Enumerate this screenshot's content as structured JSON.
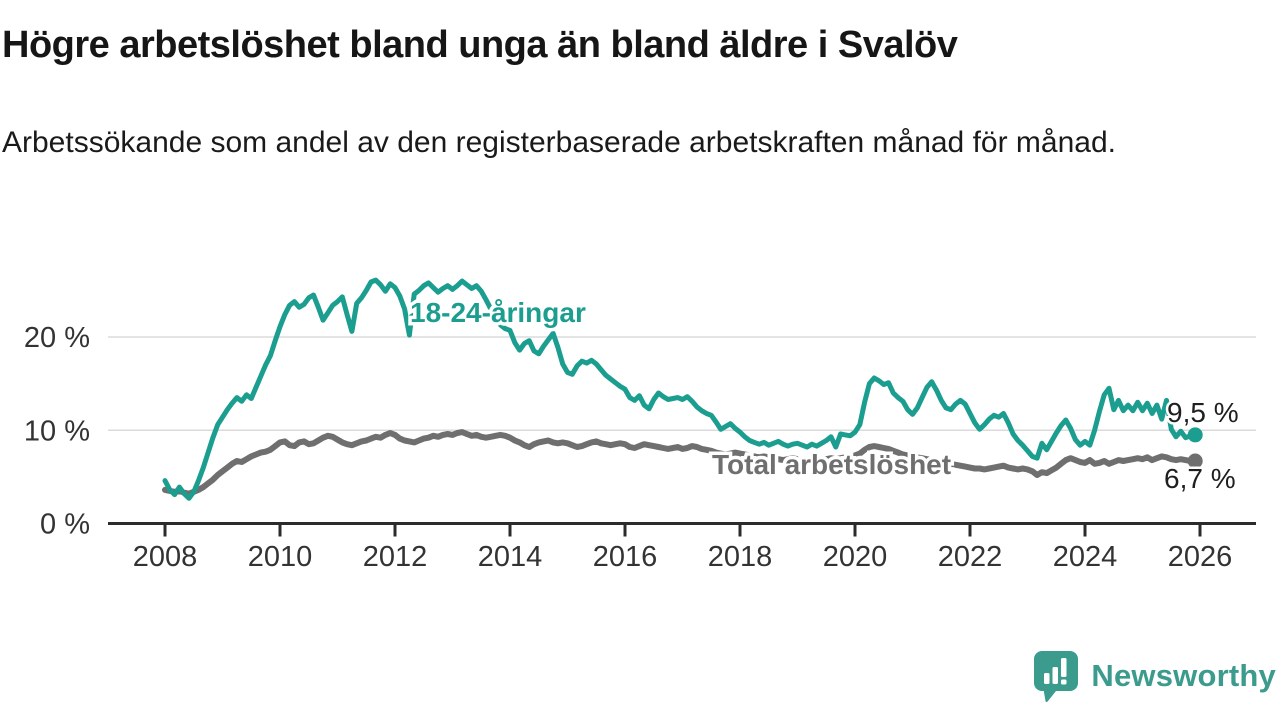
{
  "page": {
    "title": "Högre arbetslöshet bland unga än bland äldre i Svalöv",
    "subtitle": "Arbetssökande som andel av den registerbaserade arbetskraften månad för månad."
  },
  "chart_data": {
    "type": "line",
    "title": "Högre arbetslöshet bland unga än bland äldre i Svalöv",
    "subtitle": "Arbetssökande som andel av den registerbaserade arbetskraften månad för månad.",
    "x_unit": "month",
    "x_start_year": 2008,
    "points_per_year": 12,
    "xlim": [
      2008,
      2026
    ],
    "ylim": [
      0,
      27
    ],
    "grid": "horizontal",
    "x_ticks": [
      "2008",
      "2010",
      "2012",
      "2014",
      "2016",
      "2018",
      "2020",
      "2022",
      "2024",
      "2026"
    ],
    "y_ticks": [
      {
        "value": 0,
        "label": "0 %"
      },
      {
        "value": 10,
        "label": "10 %"
      },
      {
        "value": 20,
        "label": "20 %"
      }
    ],
    "series": [
      {
        "name": "18-24-åringar",
        "color": "#1b9e8f",
        "end_label": "9,5 %",
        "last_value": 9.5,
        "values": [
          4.6,
          3.6,
          3.1,
          3.9,
          3.2,
          2.7,
          3.4,
          4.6,
          6.0,
          7.6,
          9.2,
          10.6,
          11.4,
          12.2,
          12.9,
          13.5,
          13.1,
          13.8,
          13.4,
          14.6,
          15.8,
          17.0,
          18.0,
          19.6,
          21.1,
          22.4,
          23.4,
          23.8,
          23.2,
          23.5,
          24.2,
          24.5,
          23.2,
          21.8,
          22.6,
          23.4,
          23.8,
          24.3,
          22.4,
          20.6,
          23.6,
          24.2,
          25.0,
          25.9,
          26.1,
          25.6,
          24.9,
          25.7,
          25.3,
          24.4,
          23.0,
          20.2,
          24.6,
          25.0,
          25.5,
          25.8,
          25.3,
          24.8,
          25.2,
          25.5,
          25.1,
          25.5,
          26.0,
          25.6,
          25.2,
          25.5,
          24.9,
          24.0,
          23.0,
          22.0,
          21.3,
          20.9,
          20.7,
          19.4,
          18.6,
          19.3,
          19.6,
          18.5,
          18.2,
          19.0,
          19.7,
          20.4,
          18.9,
          17.1,
          16.2,
          16.0,
          16.9,
          17.4,
          17.2,
          17.5,
          17.1,
          16.5,
          15.9,
          15.5,
          15.1,
          14.7,
          14.4,
          13.5,
          13.2,
          13.7,
          12.7,
          12.3,
          13.3,
          14.0,
          13.6,
          13.3,
          13.4,
          13.5,
          13.3,
          13.6,
          13.1,
          12.5,
          12.1,
          11.8,
          11.6,
          10.9,
          10.1,
          10.4,
          10.7,
          10.2,
          9.8,
          9.3,
          8.9,
          8.7,
          8.5,
          8.7,
          8.4,
          8.6,
          8.8,
          8.5,
          8.3,
          8.5,
          8.6,
          8.4,
          8.2,
          8.5,
          8.3,
          8.6,
          8.9,
          9.3,
          8.2,
          9.6,
          9.5,
          9.4,
          9.8,
          10.6,
          13.0,
          15.0,
          15.6,
          15.3,
          14.9,
          15.1,
          14.0,
          13.5,
          13.1,
          12.2,
          11.7,
          12.4,
          13.5,
          14.6,
          15.2,
          14.3,
          13.2,
          12.4,
          12.2,
          12.8,
          13.2,
          12.8,
          11.8,
          10.8,
          10.1,
          10.6,
          11.2,
          11.6,
          11.4,
          11.8,
          10.8,
          9.6,
          8.9,
          8.4,
          7.8,
          7.2,
          7.0,
          8.6,
          7.9,
          8.8,
          9.7,
          10.5,
          11.1,
          10.2,
          9.0,
          8.4,
          8.8,
          8.4,
          10.0,
          12.0,
          13.8,
          14.5,
          12.2,
          13.2,
          12.1,
          12.7,
          12.1,
          13.0,
          12.1,
          12.9,
          11.8,
          12.7,
          11.2,
          13.2,
          10.1,
          9.3,
          9.9,
          9.2,
          9.4,
          9.5
        ]
      },
      {
        "name": "Total arbetslöshet",
        "color": "#6f6f6f",
        "end_label": "6,7 %",
        "last_value": 6.7,
        "values": [
          3.6,
          3.5,
          3.4,
          3.5,
          3.3,
          3.2,
          3.4,
          3.6,
          3.9,
          4.3,
          4.7,
          5.2,
          5.6,
          6.0,
          6.4,
          6.7,
          6.6,
          6.9,
          7.2,
          7.4,
          7.6,
          7.7,
          7.9,
          8.3,
          8.7,
          8.8,
          8.4,
          8.3,
          8.7,
          8.8,
          8.5,
          8.6,
          8.9,
          9.2,
          9.4,
          9.3,
          9.0,
          8.7,
          8.5,
          8.4,
          8.6,
          8.8,
          8.9,
          9.1,
          9.3,
          9.2,
          9.5,
          9.7,
          9.5,
          9.1,
          8.9,
          8.8,
          8.7,
          8.9,
          9.1,
          9.2,
          9.4,
          9.3,
          9.5,
          9.6,
          9.5,
          9.7,
          9.8,
          9.6,
          9.4,
          9.5,
          9.3,
          9.2,
          9.3,
          9.4,
          9.5,
          9.4,
          9.2,
          8.9,
          8.7,
          8.4,
          8.2,
          8.5,
          8.7,
          8.8,
          8.9,
          8.7,
          8.6,
          8.7,
          8.6,
          8.4,
          8.2,
          8.3,
          8.5,
          8.7,
          8.8,
          8.6,
          8.5,
          8.4,
          8.5,
          8.6,
          8.5,
          8.2,
          8.1,
          8.3,
          8.5,
          8.4,
          8.3,
          8.2,
          8.1,
          8.0,
          8.1,
          8.2,
          8.0,
          8.1,
          8.3,
          8.2,
          8.0,
          7.9,
          7.8,
          7.6,
          7.5,
          7.4,
          7.5,
          7.6,
          7.5,
          7.4,
          7.3,
          7.2,
          7.1,
          7.2,
          7.1,
          7.0,
          6.9,
          6.8,
          6.9,
          7.0,
          6.9,
          6.8,
          6.7,
          6.8,
          6.7,
          6.8,
          6.9,
          7.0,
          6.9,
          7.0,
          7.1,
          7.2,
          7.3,
          7.5,
          7.9,
          8.2,
          8.3,
          8.2,
          8.1,
          8.0,
          7.8,
          7.6,
          7.4,
          7.3,
          7.2,
          7.1,
          7.0,
          6.9,
          6.8,
          6.7,
          6.6,
          6.5,
          6.4,
          6.3,
          6.2,
          6.1,
          6.0,
          5.9,
          5.9,
          5.8,
          5.9,
          6.0,
          6.1,
          6.2,
          6.0,
          5.9,
          5.8,
          5.9,
          5.8,
          5.6,
          5.2,
          5.5,
          5.4,
          5.7,
          6.0,
          6.4,
          6.8,
          7.0,
          6.8,
          6.6,
          6.5,
          6.8,
          6.4,
          6.5,
          6.7,
          6.4,
          6.6,
          6.8,
          6.7,
          6.8,
          6.9,
          7.0,
          6.9,
          7.1,
          6.8,
          7.0,
          7.2,
          7.1,
          6.9,
          6.8,
          6.9,
          6.8,
          6.7,
          6.7
        ]
      }
    ]
  },
  "branding": {
    "logo_text": "Newsworthy",
    "logo_color": "#3b9b8d"
  },
  "colors": {
    "youth_line": "#1b9e8f",
    "total_line": "#6f6f6f",
    "grid": "#dbdbdb",
    "axis": "#2b2b2b",
    "text": "#161616"
  }
}
